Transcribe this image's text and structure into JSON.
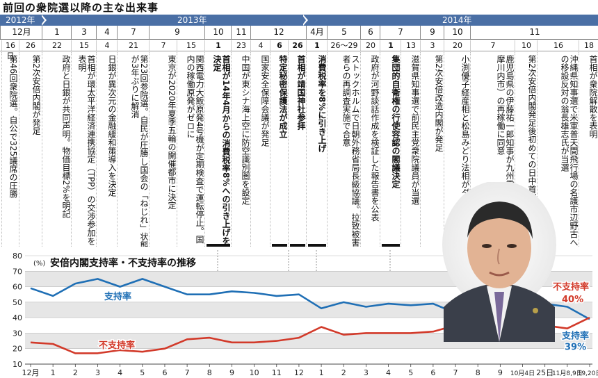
{
  "title": "前回の衆院選以降の主な出来事",
  "years": [
    {
      "label": "2012年",
      "x": 8
    },
    {
      "label": "2013年",
      "x": 255
    },
    {
      "label": "2014年",
      "x": 636
    }
  ],
  "months": [
    {
      "label": "12月",
      "x": 0,
      "w": 60
    },
    {
      "label": "1",
      "x": 60,
      "w": 42
    },
    {
      "label": "3",
      "x": 102,
      "w": 36
    },
    {
      "label": "4",
      "x": 138,
      "w": 30
    },
    {
      "label": "7",
      "x": 168,
      "w": 46
    },
    {
      "label": "9",
      "x": 214,
      "w": 80
    },
    {
      "label": "10",
      "x": 294,
      "w": 38
    },
    {
      "label": "11",
      "x": 332,
      "w": 28
    },
    {
      "label": "12",
      "x": 360,
      "w": 80
    },
    {
      "label": "4月",
      "x": 440,
      "w": 30
    },
    {
      "label": "5",
      "x": 470,
      "w": 48
    },
    {
      "label": "6",
      "x": 518,
      "w": 28
    },
    {
      "label": "7",
      "x": 546,
      "w": 58
    },
    {
      "label": "9",
      "x": 604,
      "w": 34
    },
    {
      "label": "10",
      "x": 638,
      "w": 38
    },
    {
      "label": "11",
      "x": 676,
      "w": 184
    }
  ],
  "events": [
    {
      "day": "16日",
      "text": "第46回衆院選。自公で325議席の圧勝",
      "bold": false,
      "x": 2,
      "w": 24
    },
    {
      "day": "26",
      "text": "第2次安倍内閣が発足",
      "bold": false,
      "x": 27,
      "w": 32
    },
    {
      "day": "22",
      "text": "政府と日銀が共同声明。物価目標2%を明記",
      "bold": false,
      "x": 60,
      "w": 42
    },
    {
      "day": "15",
      "text": "首相が環太平洋経済連携協定（TPP）の交渉参加を表明",
      "bold": false,
      "x": 102,
      "w": 36
    },
    {
      "day": "4",
      "text": "日銀が異次元の金融緩和策導入を決定",
      "bold": false,
      "x": 138,
      "w": 30
    },
    {
      "day": "21",
      "text": "第23回参院選。自民が圧勝し国会の「ねじれ」状態が3年ぶりに解消",
      "bold": false,
      "x": 168,
      "w": 46
    },
    {
      "day": "7",
      "text": "東京が2020年夏季五輪の開催都市に決定",
      "bold": false,
      "x": 214,
      "w": 40
    },
    {
      "day": "15",
      "text": "関西電力大飯原発4号機が定期検査で運転停止。国内の稼働原発がゼロに",
      "bold": false,
      "x": 254,
      "w": 40
    },
    {
      "day": "1",
      "text": "首相が14年4月からの消費税率8%への引き上げを決定",
      "bold": true,
      "x": 294,
      "w": 38
    },
    {
      "day": "23",
      "text": "中国が東シナ海上空に防空識別圏を設定",
      "bold": false,
      "x": 332,
      "w": 28
    },
    {
      "day": "4",
      "text": "国家安全保障会議が発足",
      "bold": false,
      "x": 360,
      "w": 28
    },
    {
      "day": "6",
      "text": "特定秘密保護法が成立",
      "bold": true,
      "x": 388,
      "w": 26
    },
    {
      "day": "26",
      "text": "首相が靖国神社参拝",
      "bold": true,
      "x": 414,
      "w": 26
    },
    {
      "day": "1",
      "text": "消費税率を8%に引き上げ",
      "bold": true,
      "x": 440,
      "w": 30
    },
    {
      "day": "26〜29",
      "text": "ストックホルムで日朝外務省局長級協議。拉致被害者らの再調査実施で合意",
      "bold": false,
      "x": 470,
      "w": 48
    },
    {
      "day": "20",
      "text": "政府が河野談話作成を検証した報告書を公表",
      "bold": false,
      "x": 518,
      "w": 28
    },
    {
      "day": "1",
      "text": "集団的自衛権の行使容認の閣議決定",
      "bold": true,
      "x": 546,
      "w": 30
    },
    {
      "day": "13",
      "text": "滋賀県知事選で前民主党衆院議員が当選",
      "bold": false,
      "x": 576,
      "w": 28
    },
    {
      "day": "3",
      "text": "第2次安倍改造内閣が発足",
      "bold": false,
      "x": 604,
      "w": 34
    },
    {
      "day": "20",
      "text": "小渕優子経産相と松島みどり法相がダブル辞任",
      "bold": false,
      "x": 638,
      "w": 38
    },
    {
      "day": "7",
      "text": "鹿児島県の伊藤祐一郎知事が九州電力川内原発（薩摩川内市）の再稼働に同意",
      "bold": false,
      "x": 676,
      "w": 64
    },
    {
      "day": "10",
      "text": "第2次安倍内閣発足後初めての日中首脳会談",
      "bold": false,
      "x": 740,
      "w": 32
    },
    {
      "day": "16",
      "text": "沖縄県知事選で米軍普天間飛行場の名護市辺野古への移設反対の翁長雄志氏が当選",
      "bold": false,
      "x": 772,
      "w": 60
    },
    {
      "day": "18",
      "text": "首相が衆院解散を表明",
      "bold": false,
      "x": 832,
      "w": 28
    }
  ],
  "chart_data": {
    "type": "line",
    "title": "安倍内閣支持率・不支持率の推移",
    "ylabel": "(%)",
    "ylim": [
      10,
      80
    ],
    "yticks": [
      10,
      20,
      30,
      40,
      50,
      60,
      70,
      80
    ],
    "x": [
      "12月",
      "1",
      "2",
      "3",
      "4",
      "5",
      "6",
      "7",
      "8",
      "9",
      "10",
      "11",
      "12",
      "1",
      "2",
      "3",
      "4",
      "5",
      "6",
      "7",
      "8",
      "9",
      "10月4日",
      "25日",
      "11月8,9日",
      "19,20日"
    ],
    "series": [
      {
        "name": "支持率",
        "color": "#1f6fb5",
        "values": [
          59,
          54,
          62,
          65,
          60,
          65,
          60,
          55,
          55,
          57,
          56,
          54,
          55,
          46,
          50,
          47,
          49,
          48,
          49,
          43,
          45,
          47,
          47,
          49,
          47,
          39
        ]
      },
      {
        "name": "不支持率",
        "color": "#d23a2a",
        "values": [
          24,
          23,
          17,
          17,
          19,
          18,
          20,
          26,
          27,
          24,
          24,
          25,
          27,
          34,
          29,
          30,
          30,
          30,
          31,
          35,
          37,
          35,
          33,
          35,
          33,
          40
        ]
      }
    ],
    "labels": [
      {
        "text": "支持率",
        "color": "#1f6fb5"
      },
      {
        "text": "不支持率",
        "color": "#d23a2a"
      },
      {
        "text": "不支持率",
        "color": "#d23a2a"
      },
      {
        "text": "40%",
        "color": "#d23a2a"
      },
      {
        "text": "支持率",
        "color": "#1f6fb5"
      },
      {
        "text": "39%",
        "color": "#1f6fb5"
      }
    ]
  }
}
